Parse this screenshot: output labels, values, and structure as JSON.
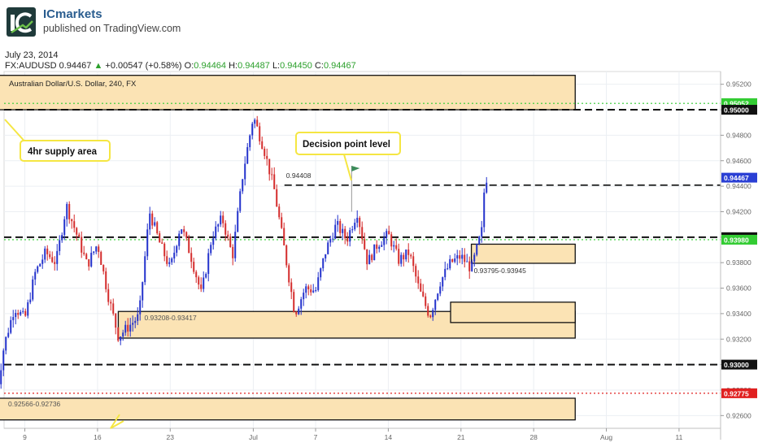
{
  "header": {
    "brand": "ICmarkets",
    "published": "published on TradingView.com",
    "date": "July 23, 2014"
  },
  "quote": {
    "symbol": "FX:AUDUSD",
    "last": "0.94467",
    "change": "+0.00547 (+0.58%)",
    "o_label": "O:",
    "o": "0.94464",
    "h_label": "H:",
    "h": "0.94487",
    "l_label": "L:",
    "l": "0.94450",
    "c_label": "C:",
    "c": "0.94467"
  },
  "colors": {
    "bull": "#2332cc",
    "bear": "#d42c2c",
    "zone_fill": "#fbe3b4",
    "green_line": "#33cc33",
    "red_line": "#e02020",
    "callout_border": "#f5e642",
    "last_price_badge": "#2a3fd4"
  },
  "chart_data": {
    "type": "candlestick",
    "title": "Australian Dollar/U.S. Dollar, 240, FX",
    "timeframe": "240",
    "ylim": [
      0.925,
      0.953
    ],
    "y_ticks": [
      "0.92600",
      "0.92800",
      "0.93000",
      "0.93200",
      "0.93400",
      "0.93600",
      "0.93800",
      "0.94000",
      "0.94200",
      "0.94400",
      "0.94600",
      "0.94800",
      "0.95000",
      "0.95200"
    ],
    "x_ticks": [
      "9",
      "16",
      "23",
      "Jul",
      "7",
      "14",
      "21",
      "28",
      "Aug",
      "11"
    ],
    "x_tick_dates": [
      "2014-06-09",
      "2014-06-16",
      "2014-06-23",
      "2014-07-01",
      "2014-07-07",
      "2014-07-14",
      "2014-07-21",
      "2014-07-28",
      "2014-08-04",
      "2014-08-11"
    ],
    "x_start": "2014-06-07",
    "x_end": "2014-08-15",
    "price_path": [
      [
        "2014-06-06",
        0.9262
      ],
      [
        "2014-06-07",
        0.9315
      ],
      [
        "2014-06-08",
        0.9345
      ],
      [
        "2014-06-09",
        0.9336
      ],
      [
        "2014-06-10",
        0.9372
      ],
      [
        "2014-06-11",
        0.9388
      ],
      [
        "2014-06-12",
        0.938
      ],
      [
        "2014-06-13",
        0.9425
      ],
      [
        "2014-06-14",
        0.9402
      ],
      [
        "2014-06-15",
        0.9378
      ],
      [
        "2014-06-16",
        0.9395
      ],
      [
        "2014-06-17",
        0.9355
      ],
      [
        "2014-06-18",
        0.9322
      ],
      [
        "2014-06-19",
        0.933
      ],
      [
        "2014-06-20",
        0.9338
      ],
      [
        "2014-06-21",
        0.942
      ],
      [
        "2014-06-22",
        0.9395
      ],
      [
        "2014-06-23",
        0.9375
      ],
      [
        "2014-06-24",
        0.941
      ],
      [
        "2014-06-25",
        0.9385
      ],
      [
        "2014-06-26",
        0.9355
      ],
      [
        "2014-06-27",
        0.94
      ],
      [
        "2014-06-28",
        0.9415
      ],
      [
        "2014-06-29",
        0.9385
      ],
      [
        "2014-06-30",
        0.945
      ],
      [
        "2014-07-01",
        0.9495
      ],
      [
        "2014-07-02",
        0.947
      ],
      [
        "2014-07-03",
        0.9438
      ],
      [
        "2014-07-04",
        0.939
      ],
      [
        "2014-07-05",
        0.934
      ],
      [
        "2014-07-06",
        0.936
      ],
      [
        "2014-07-07",
        0.9358
      ],
      [
        "2014-07-08",
        0.939
      ],
      [
        "2014-07-09",
        0.941
      ],
      [
        "2014-07-10",
        0.9398
      ],
      [
        "2014-07-11",
        0.942
      ],
      [
        "2014-07-12",
        0.938
      ],
      [
        "2014-07-13",
        0.9395
      ],
      [
        "2014-07-14",
        0.9402
      ],
      [
        "2014-07-15",
        0.9382
      ],
      [
        "2014-07-16",
        0.9388
      ],
      [
        "2014-07-17",
        0.9358
      ],
      [
        "2014-07-18",
        0.9338
      ],
      [
        "2014-07-19",
        0.9365
      ],
      [
        "2014-07-20",
        0.938
      ],
      [
        "2014-07-21",
        0.9385
      ],
      [
        "2014-07-22",
        0.9375
      ],
      [
        "2014-07-23",
        0.9405
      ],
      [
        "2014-07-23.3",
        0.9445
      ],
      [
        "2014-07-23.5",
        0.94467
      ]
    ],
    "horizontal_levels": [
      {
        "price": 0.95,
        "style": "dashed",
        "color": "black",
        "label": "0.95000"
      },
      {
        "price": 0.9505,
        "style": "dotted",
        "color": "green",
        "label": "0.95052"
      },
      {
        "price": 0.94408,
        "style": "dashed",
        "color": "black",
        "label": "0.94408",
        "start": "2014-07-04"
      },
      {
        "price": 0.94,
        "style": "dashed",
        "color": "black",
        "label": "0.94000"
      },
      {
        "price": 0.9398,
        "style": "dotted",
        "color": "green",
        "label": "0.93980"
      },
      {
        "price": 0.93,
        "style": "dashed",
        "color": "black",
        "label": "0.93000"
      },
      {
        "price": 0.92775,
        "style": "dotted",
        "color": "red",
        "label": "0.92775"
      }
    ],
    "zones": [
      {
        "name": "4hr supply area",
        "from": 0.95,
        "to": 0.9527,
        "start": "2014-06-06",
        "end": "2014-08-01"
      },
      {
        "label": "0.93795-0.93945",
        "from": 0.93795,
        "to": 0.93945,
        "start": "2014-07-22",
        "end": "2014-08-01"
      },
      {
        "label": "0.93208-0.93417",
        "from": 0.93208,
        "to": 0.93417,
        "start": "2014-06-18",
        "end": "2014-08-01"
      },
      {
        "from": 0.9333,
        "to": 0.9349,
        "start": "2014-07-20",
        "end": "2014-08-01"
      },
      {
        "label": "0.92566-0.92736",
        "from": 0.92566,
        "to": 0.92736,
        "start": "2014-06-06",
        "end": "2014-08-01"
      }
    ],
    "annotations": [
      {
        "text": "4hr supply area"
      },
      {
        "text": "Decision point level"
      },
      {
        "text": "0.94408"
      },
      {
        "text": "0.93795-0.93945"
      },
      {
        "text": "0.93208-0.93417"
      },
      {
        "text": "0.92566-0.92736"
      }
    ],
    "axis_badges": [
      {
        "price": 0.95052,
        "label": "0.95052",
        "color": "green"
      },
      {
        "price": 0.95,
        "label": "0.95000",
        "color": "black"
      },
      {
        "price": 0.94467,
        "label": "0.94467",
        "color": "blue"
      },
      {
        "price": 0.94,
        "label": "0.94000",
        "color": "black"
      },
      {
        "price": 0.9398,
        "label": "0.93980",
        "color": "green"
      },
      {
        "price": 0.93,
        "label": "0.93000",
        "color": "black"
      },
      {
        "price": 0.92775,
        "label": "0.92775",
        "color": "red"
      }
    ],
    "grid": true
  }
}
